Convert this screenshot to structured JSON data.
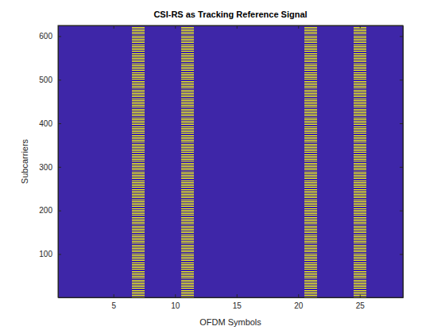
{
  "chart_data": {
    "type": "heatmap",
    "title": "CSI-RS as Tracking Reference Signal",
    "xlabel": "OFDM Symbols",
    "ylabel": "Subcarriers",
    "xlim": [
      0.5,
      28.5
    ],
    "ylim": [
      0.5,
      624.5
    ],
    "xticks": [
      5,
      10,
      15,
      20,
      25
    ],
    "yticks": [
      100,
      200,
      300,
      400,
      500,
      600
    ],
    "color": "#f9fb0e",
    "symbols": [
      7,
      11,
      21,
      25
    ],
    "subcarriers": [
      1,
      5,
      9,
      13,
      17,
      21,
      25,
      29,
      33,
      37,
      41,
      45,
      49,
      53,
      57,
      61,
      65,
      69,
      73,
      77,
      81,
      85,
      89,
      93,
      97,
      101,
      105,
      109,
      113,
      117,
      121,
      125,
      129,
      133,
      137,
      141,
      145,
      149,
      153,
      157,
      161,
      165,
      169,
      173,
      177,
      181,
      185,
      189,
      193,
      197,
      201,
      205,
      209,
      213,
      217,
      221,
      225,
      229,
      233,
      237,
      241,
      245,
      249,
      253,
      257,
      261,
      265,
      269,
      273,
      277,
      281,
      285,
      289,
      293,
      297,
      301,
      305,
      309,
      313,
      317,
      321,
      325,
      329,
      333,
      337,
      341,
      345,
      349,
      353,
      357,
      361,
      365,
      369,
      373,
      377,
      381,
      385,
      389,
      393,
      397,
      401,
      405,
      409,
      413,
      417,
      421,
      425,
      429,
      433,
      437,
      441,
      445,
      449,
      453,
      457,
      461,
      465,
      469,
      473,
      477,
      481,
      485,
      489,
      493,
      497,
      501,
      505,
      509,
      513,
      517,
      521,
      525,
      529,
      533,
      537,
      541,
      545,
      549,
      553,
      557,
      561,
      565,
      569,
      573,
      577,
      581,
      585,
      589,
      593,
      597,
      601,
      605,
      609,
      613,
      617,
      621
    ]
  }
}
